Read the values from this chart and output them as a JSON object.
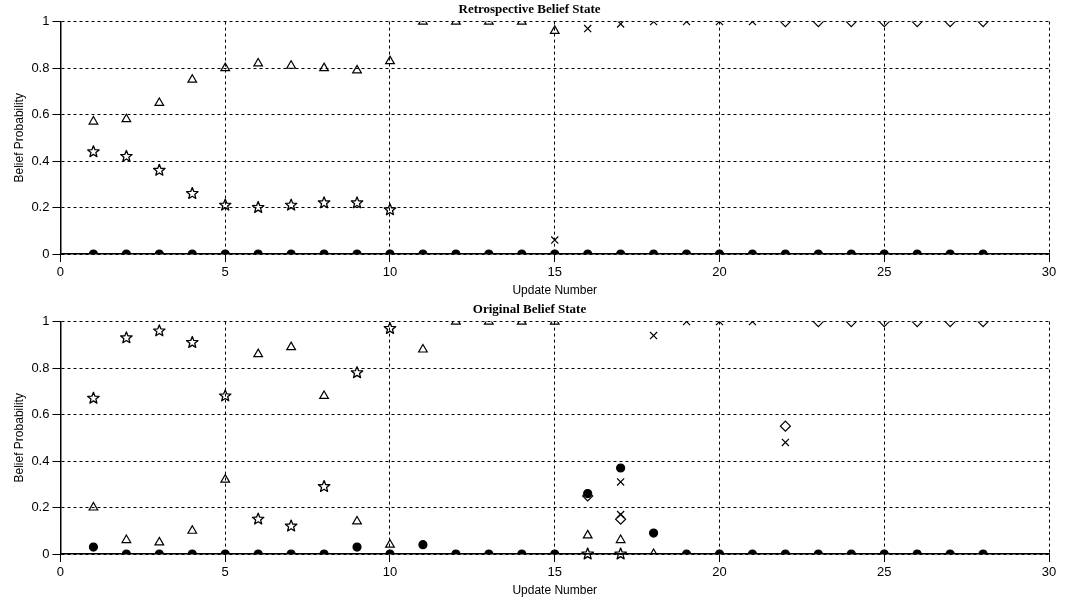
{
  "chart_data": [
    {
      "type": "scatter",
      "title": "Retrospective Belief State",
      "xlabel": "Update Number",
      "ylabel": "Belief Probability",
      "x": [
        1,
        2,
        3,
        4,
        5,
        6,
        7,
        8,
        9,
        10,
        11,
        12,
        13,
        14,
        15,
        16,
        17,
        18,
        19,
        20,
        21,
        22,
        23,
        24,
        25,
        26,
        27,
        28
      ],
      "xlim": [
        0,
        30
      ],
      "xticks": [
        0,
        5,
        10,
        15,
        20,
        25,
        30
      ],
      "ylim": [
        0,
        1
      ],
      "yticks": [
        0,
        0.2,
        0.4,
        0.6,
        0.8,
        1
      ],
      "grid": true,
      "legend": false,
      "series": [
        {
          "marker": "triangle",
          "color": "#000000",
          "values": [
            0.57,
            0.58,
            0.65,
            0.75,
            0.8,
            0.82,
            0.81,
            0.8,
            0.79,
            0.83,
            1,
            1,
            1,
            1,
            0.96,
            null,
            null,
            null,
            null,
            null,
            null,
            null,
            null,
            null,
            null,
            null,
            null,
            null
          ]
        },
        {
          "marker": "star",
          "color": "#000000",
          "values": [
            0.44,
            0.42,
            0.36,
            0.26,
            0.21,
            0.2,
            0.21,
            0.22,
            0.22,
            0.19,
            null,
            null,
            null,
            null,
            null,
            null,
            null,
            null,
            null,
            null,
            null,
            null,
            null,
            null,
            null,
            null,
            null,
            null
          ]
        },
        {
          "marker": "cross",
          "color": "#000000",
          "values": [
            null,
            null,
            null,
            null,
            null,
            null,
            null,
            null,
            null,
            null,
            null,
            null,
            null,
            null,
            0.06,
            0.97,
            0.99,
            1,
            1,
            1,
            1,
            null,
            null,
            null,
            null,
            null,
            null,
            null
          ]
        },
        {
          "marker": "diamond",
          "color": "#000000",
          "values": [
            null,
            null,
            null,
            null,
            null,
            null,
            null,
            null,
            null,
            null,
            null,
            null,
            null,
            null,
            null,
            null,
            null,
            null,
            null,
            null,
            null,
            1,
            1,
            1,
            1,
            1,
            1,
            1
          ]
        },
        {
          "marker": "circle",
          "color": "#000000",
          "values": [
            0,
            0,
            0,
            0,
            0,
            0,
            0,
            0,
            0,
            0,
            0,
            0,
            0,
            0,
            0,
            0,
            0,
            0,
            0,
            0,
            0,
            0,
            0,
            0,
            0,
            0,
            0,
            0
          ]
        }
      ]
    },
    {
      "type": "scatter",
      "title": "Original Belief State",
      "xlabel": "Update Number",
      "ylabel": "Belief Probability",
      "x": [
        1,
        2,
        3,
        4,
        5,
        6,
        7,
        8,
        9,
        10,
        11,
        12,
        13,
        14,
        15,
        16,
        17,
        18,
        19,
        20,
        21,
        22,
        23,
        24,
        25,
        26,
        27,
        28
      ],
      "xlim": [
        0,
        30
      ],
      "xticks": [
        0,
        5,
        10,
        15,
        20,
        25,
        30
      ],
      "ylim": [
        0,
        1
      ],
      "yticks": [
        0,
        0.2,
        0.4,
        0.6,
        0.8,
        1
      ],
      "grid": true,
      "legend": false,
      "series": [
        {
          "marker": "triangle",
          "color": "#000000",
          "values": [
            0.2,
            0.06,
            0.05,
            0.1,
            0.32,
            0.86,
            0.89,
            0.68,
            0.14,
            0.04,
            0.88,
            1,
            1,
            1,
            1,
            0.08,
            0.06,
            0,
            null,
            null,
            null,
            null,
            null,
            null,
            null,
            null,
            null,
            null
          ]
        },
        {
          "marker": "star",
          "color": "#000000",
          "values": [
            0.67,
            0.93,
            0.96,
            0.91,
            0.68,
            0.15,
            0.12,
            0.29,
            0.78,
            0.97,
            null,
            null,
            null,
            null,
            null,
            0,
            0,
            null,
            null,
            null,
            null,
            null,
            null,
            null,
            null,
            null,
            null,
            null
          ]
        },
        {
          "marker": "cross",
          "color": "#000000",
          "values": [
            null,
            null,
            null,
            null,
            null,
            null,
            null,
            null,
            null,
            null,
            null,
            null,
            null,
            null,
            null,
            null,
            0.31,
            0.94,
            1,
            1,
            1,
            null,
            null,
            null,
            null,
            null,
            null,
            null
          ]
        },
        {
          "marker": "diamond",
          "color": "#000000",
          "values": [
            null,
            null,
            null,
            null,
            null,
            null,
            null,
            null,
            null,
            null,
            null,
            null,
            null,
            null,
            null,
            0.25,
            0.15,
            null,
            null,
            null,
            null,
            0.55,
            1,
            1,
            1,
            1,
            1,
            1
          ]
        },
        {
          "marker": "cross",
          "color": "#000000",
          "values": [
            null,
            null,
            null,
            null,
            null,
            null,
            null,
            null,
            null,
            null,
            null,
            null,
            null,
            null,
            null,
            null,
            0.17,
            null,
            null,
            null,
            null,
            0.48,
            null,
            null,
            null,
            null,
            null,
            null
          ]
        },
        {
          "marker": "circle",
          "color": "#000000",
          "values": [
            0.03,
            0,
            0,
            0,
            0,
            0,
            0,
            0,
            0.03,
            0,
            0.04,
            0,
            0,
            0,
            0,
            0.26,
            0.37,
            0.09,
            0,
            0,
            0,
            0,
            0,
            0,
            0,
            0,
            0,
            0
          ]
        }
      ]
    }
  ]
}
